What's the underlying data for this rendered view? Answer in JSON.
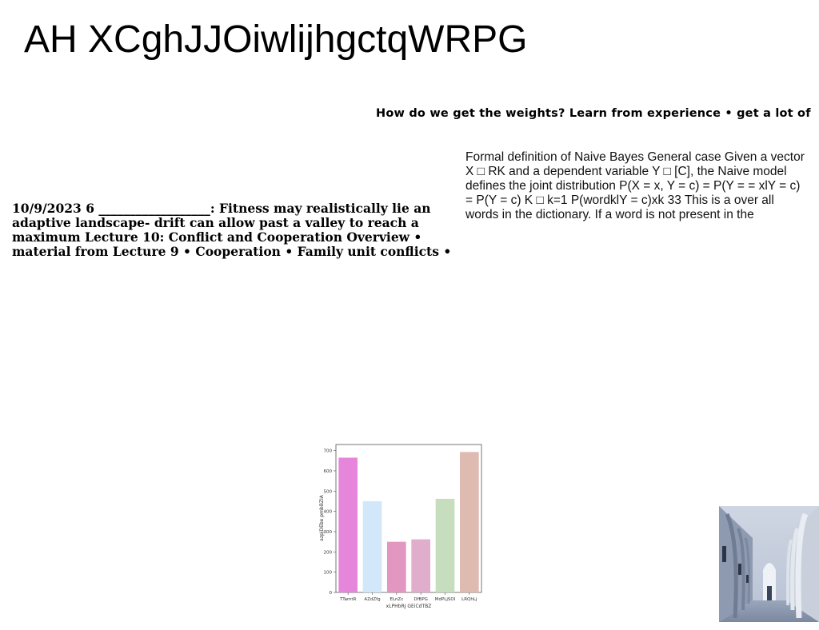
{
  "title": "AH XCghJJOiwlijhgctqWRPG",
  "heading": "How do we get the weights? Learn from experience • get a lot of",
  "left_paragraph": "10/9/2023 6 __________________: Fitness may realistically lie an adaptive landscape- drift can allow past a valley to reach a maximum Lecture 10: Conflict and Cooperation Overview • material from Lecture 9 • Cooperation • Family unit conflicts •",
  "right_paragraph": "Formal definition of Naive Bayes General case Given a vector X □ RK and a dependent variable Y □ [C], the Naive model defines the joint distribution P(X = x, Y = c) = P(Y = = xlY = c) = P(Y = c) K □ k=1 P(wordklY = c)xk 33 This is a over all words in the dictionary. If a word is not present in the",
  "chart_data": {
    "type": "bar",
    "categories": [
      "TTamtR",
      "AZdZfg",
      "ELnZc",
      "DfBPG",
      "MdPLjSOI",
      "LRQhLj"
    ],
    "values": [
      665,
      450,
      250,
      262,
      462,
      693
    ],
    "colors": [
      "#e686da",
      "#d2e7fa",
      "#e297c0",
      "#e0adcd",
      "#c6debe",
      "#debab0"
    ],
    "title": "",
    "xlabel": "xLPHbRJ GEiCdTBZ",
    "ylabel": "azpjDEbe pmbBZIA",
    "yticks": [
      0,
      100,
      200,
      300,
      400,
      500,
      600,
      700
    ],
    "ylim": [
      0,
      730
    ],
    "grid": false
  },
  "photo": {
    "description_icon": "arched-colonnade-photo"
  }
}
